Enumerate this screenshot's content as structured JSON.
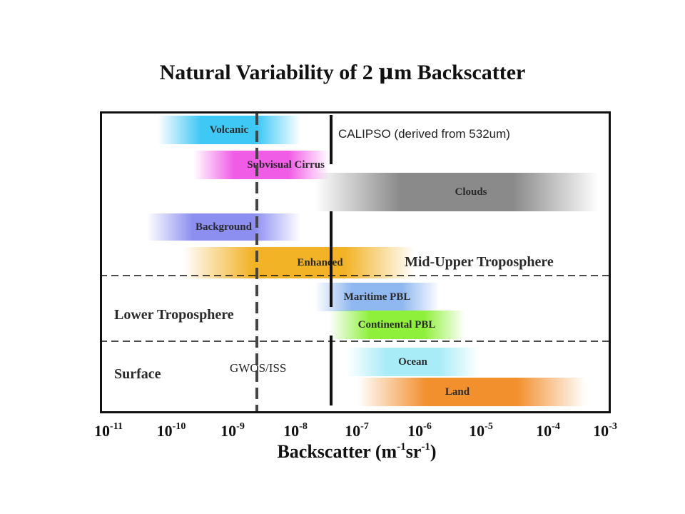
{
  "title": {
    "prefix": "Natural Variability of 2 ",
    "mu": "μ",
    "suffix": "m Backscatter"
  },
  "bands": [
    {
      "id": "volcanic",
      "label": "Volcanic",
      "color": "#3ec8f5"
    },
    {
      "id": "subvisual-cirrus",
      "label": "Subvisual Cirrus",
      "color": "#f05ce6"
    },
    {
      "id": "clouds",
      "label": "Clouds",
      "color": "#8a8a8a"
    },
    {
      "id": "background",
      "label": "Background",
      "color": "#8c8ef0"
    },
    {
      "id": "enhanced",
      "label": "Enhanced",
      "color": "#f2b326"
    },
    {
      "id": "maritime-pbl",
      "label": "Maritime PBL",
      "color": "#90b8f0"
    },
    {
      "id": "continental-pbl",
      "label": "Continental PBL",
      "color": "#8ef03a"
    },
    {
      "id": "ocean",
      "label": "Ocean",
      "color": "#a8ecf8"
    },
    {
      "id": "land",
      "label": "Land",
      "color": "#f2902e"
    }
  ],
  "regions": {
    "mid_upper": "Mid-Upper Troposphere",
    "lower": "Lower Troposphere",
    "surface": "Surface"
  },
  "instruments": {
    "calipso": "CALIPSO (derived from 532um)",
    "gwos": "GWOS/ISS"
  },
  "x_axis": {
    "base": "10",
    "exponents": [
      "-11",
      "-10",
      "-9",
      "-8",
      "-7",
      "-6",
      "-5",
      "-4",
      "-3"
    ],
    "title_prefix": "Backscatter (m",
    "title_exp1": "-1",
    "title_mid": "sr",
    "title_exp2": "-1",
    "title_suffix": ")"
  }
}
